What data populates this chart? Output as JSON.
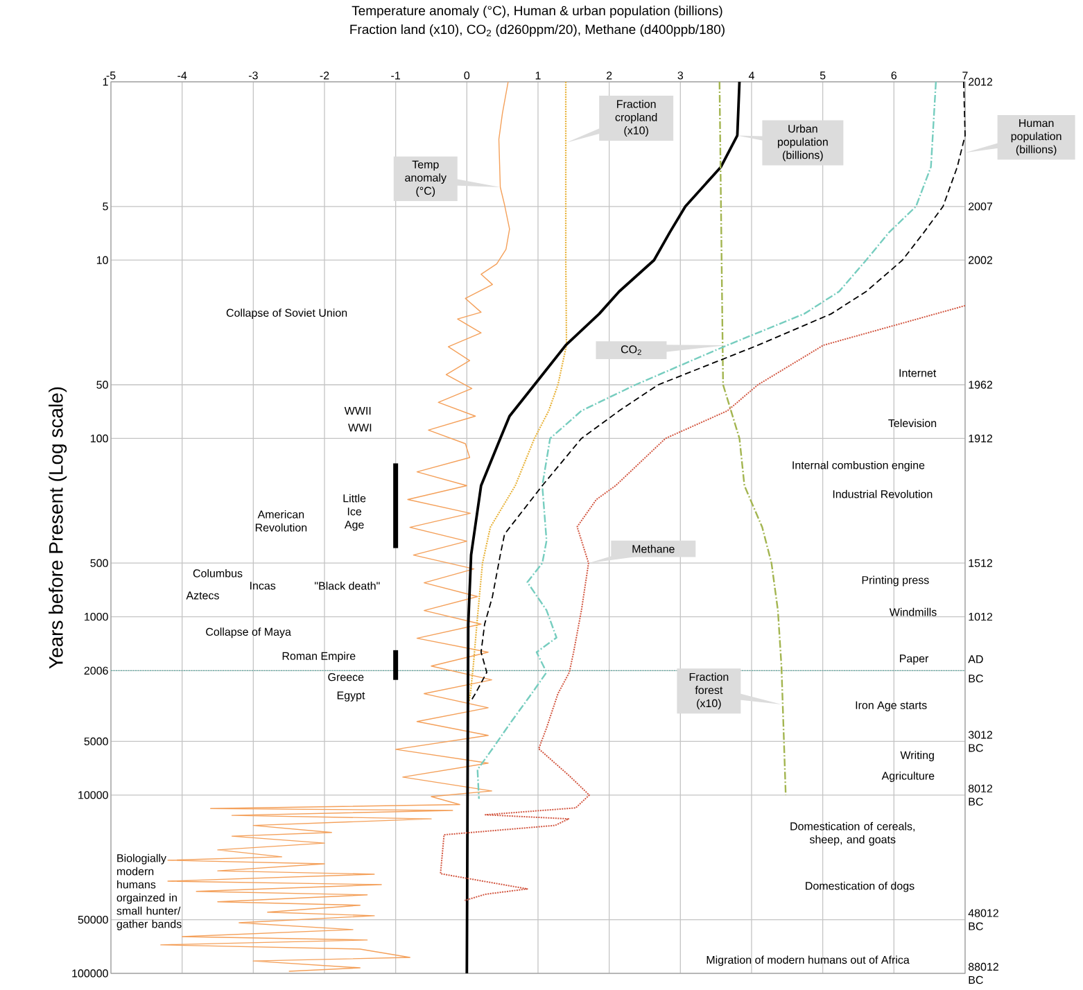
{
  "chart_data": {
    "type": "line",
    "title": "Temperature anomaly (°C),  Human & urban population (billions)",
    "subtitle": "Fraction land (x10),  CO$_{2}$ (d260ppm/20), Methane (d400ppb/180)",
    "ylabel": "Years before Present (Log scale)",
    "xlim": [
      -5,
      7
    ],
    "xticks": [
      -5,
      -4,
      -3,
      -2,
      -1,
      0,
      1,
      2,
      3,
      4,
      5,
      6,
      7
    ],
    "ylim": [
      100000,
      1
    ],
    "yticks": [
      1,
      5,
      10,
      50,
      100,
      500,
      1000,
      2006,
      5000,
      10000,
      50000,
      100000
    ],
    "log": "y",
    "grid": true,
    "series": [
      {
        "name": "Temp anomaly (°C)",
        "color": "#f4a05a",
        "line_style": "solid",
        "x": [
          0.58,
          0.5,
          0.45,
          0.47,
          0.53,
          0.6,
          0.55,
          0.42,
          0.2,
          0.36,
          -0.02,
          0.2,
          -0.13,
          0.2,
          -0.26,
          0.04,
          -0.29,
          0.07,
          -0.4,
          0.12,
          -0.54,
          -0.02,
          0.04,
          -0.7,
          0.0,
          -0.83,
          0.05,
          -0.8,
          0.0,
          -0.75,
          0.1,
          -0.6,
          0.15,
          -0.6,
          0.2,
          -0.7,
          0.3,
          -0.5,
          0.35,
          -0.6,
          0.3,
          -0.7,
          0.3,
          -1.0,
          0.3,
          -0.9,
          0.35,
          -0.5,
          -0.1,
          -3.6,
          -0.2,
          -3.3,
          -0.5,
          -3.0,
          -1.9,
          -3.3,
          -2.0,
          -3.5,
          -2.6,
          -4.2,
          -2.0,
          -3.5,
          -1.3,
          -4.2,
          -1.2,
          -3.8,
          -1.4,
          -3.5,
          -1.5,
          -2.8,
          -1.3,
          -3.2,
          -1.6,
          -4.0,
          -1.4,
          -4.3,
          -1.5,
          -0.8,
          -3.0,
          -1.5,
          -2.5
        ],
        "values": [
          1,
          1.5,
          2.1,
          3.9,
          4.9,
          6.7,
          8.7,
          10.5,
          12,
          13.7,
          16.4,
          19.6,
          21.4,
          25.6,
          30.6,
          36.6,
          43.9,
          52.5,
          62.8,
          75,
          89.8,
          107,
          128,
          154,
          184,
          220,
          263,
          315,
          377,
          451,
          539,
          645,
          771,
          923,
          1100,
          1320,
          1580,
          1890,
          2260,
          2700,
          3240,
          3870,
          4630,
          5540,
          6620,
          7930,
          9480,
          10200,
          11300,
          11900,
          12200,
          13000,
          13600,
          14800,
          16200,
          17000,
          18600,
          20300,
          22200,
          23200,
          24300,
          26600,
          27800,
          30400,
          31800,
          34700,
          36300,
          39700,
          41500,
          45400,
          47500,
          52000,
          56800,
          62200,
          65000,
          69200,
          73100,
          81400,
          85200,
          93100,
          97300
        ]
      },
      {
        "name": "Fraction cropland (x10)",
        "color": "#e8b33a",
        "line_style": "dotted",
        "x": [
          1.39,
          1.39,
          1.4,
          1.28,
          1.15,
          0.95,
          0.68,
          0.33,
          0.22,
          0.15,
          0.09,
          0.05,
          0.03
        ],
        "values": [
          1,
          10,
          30,
          50,
          70,
          100,
          184,
          315,
          500,
          1000,
          1900,
          2700,
          3000
        ]
      },
      {
        "name": "Urban population (billions)",
        "color": "#000000",
        "line_style": "solid",
        "x": [
          3.83,
          3.8,
          3.57,
          3.07,
          2.85,
          2.63,
          2.14,
          1.86,
          1.39,
          0.95,
          0.6,
          0.47,
          0.2,
          0.06,
          0.02,
          0
        ],
        "values": [
          1,
          2,
          3,
          5,
          7,
          10,
          15,
          20,
          30,
          50,
          75,
          100,
          184,
          450,
          1100,
          100000
        ]
      },
      {
        "name": "Fraction forest (x10)",
        "color": "#a3b550",
        "line_style": "dashdot",
        "x": [
          3.55,
          3.6,
          3.83,
          3.9,
          4.15,
          4.28,
          4.37,
          4.42,
          4.48
        ],
        "values": [
          1,
          50,
          100,
          184,
          315,
          500,
          920,
          1890,
          10000
        ]
      },
      {
        "name": "CO$_{2}$",
        "color": "#76cdbf",
        "line_style": "dashdot",
        "x": [
          6.59,
          6.52,
          6.31,
          5.93,
          5.61,
          5.23,
          4.74,
          3.66,
          2.37,
          1.61,
          1.17,
          1.06,
          1.12,
          1.06,
          0.85,
          1.12,
          1.26,
          0.98,
          1.12,
          0.91,
          0.63,
          0.36,
          0.15,
          0.17
        ],
        "values": [
          1,
          3,
          5,
          7,
          10,
          15,
          20,
          30,
          50,
          70,
          100,
          184,
          375,
          500,
          640,
          920,
          1310,
          1580,
          2050,
          2700,
          3850,
          5500,
          7200,
          10500
        ]
      },
      {
        "name": "Human population (billions)",
        "color": "#000000",
        "line_style": "dashed",
        "x": [
          6.98,
          7.0,
          6.89,
          6.69,
          6.42,
          6.12,
          5.61,
          5.12,
          4.09,
          2.69,
          2.14,
          1.61,
          1.06,
          0.53,
          0.47,
          0.36,
          0.25,
          0.2,
          0.28,
          0.12,
          0.05
        ],
        "values": [
          1,
          2,
          3,
          5,
          7,
          10,
          15,
          20,
          30,
          50,
          70,
          100,
          184,
          344,
          450,
          770,
          1100,
          1580,
          2050,
          2700,
          3000
        ]
      },
      {
        "name": "Methane",
        "color": "#d2553f",
        "line_style": "dotted",
        "x": [
          7.0,
          5.01,
          4.09,
          3.66,
          2.79,
          2.09,
          1.82,
          1.55,
          1.71,
          1.61,
          1.5,
          1.44,
          1.28,
          1.12,
          1.01,
          1.44,
          1.72,
          1.53,
          0.26,
          1.43,
          1.24,
          -0.32,
          -0.37,
          0.85,
          0.26,
          -0.03
        ],
        "values": [
          18,
          30,
          50,
          70,
          100,
          184,
          220,
          313,
          500,
          920,
          1580,
          2050,
          2700,
          4200,
          5500,
          7800,
          10000,
          11800,
          12900,
          13600,
          14800,
          16700,
          27600,
          33600,
          36000,
          39000
        ]
      },
      {
        "color": "#000000",
        "line_style": "solid",
        "x": [
          -1,
          -1
        ],
        "values": [
          138,
          412
        ]
      },
      {
        "color": "#000000",
        "line_style": "solid",
        "x": [
          -1,
          -1
        ],
        "values": [
          1540,
          2260
        ]
      }
    ],
    "ref_lines": [
      {
        "axis": "y",
        "value": 2006,
        "color": "#5fa8a0",
        "line_style": "dotted"
      }
    ],
    "annotations": [
      "Collapse of Soviet Union",
      "WWII",
      "WWI",
      "Little Ice Age",
      "American Revolution",
      "Columbus",
      "Incas",
      "\"Black death\"",
      "Aztecs",
      "Collapse of Maya",
      "Roman Empire",
      "Greece",
      "Egypt",
      "Biologially modern humans orgainzed in small hunter/ gather bands",
      "Internet",
      "Television",
      "Internal combustion engine",
      "Industrial Revolution",
      "Printing press",
      "Windmills",
      "Paper",
      "Iron Age starts",
      "Writing",
      "Agriculture",
      "Domestication of cereals, sheep, and goats",
      "Domestication of dogs",
      "Migration of modern humans out of Africa",
      "2012",
      "2007",
      "2002",
      "1962",
      "1912",
      "1512",
      "1012",
      "AD",
      "BC",
      "3012 BC",
      "8012 BC",
      "48012 BC",
      "88012 BC"
    ]
  }
}
